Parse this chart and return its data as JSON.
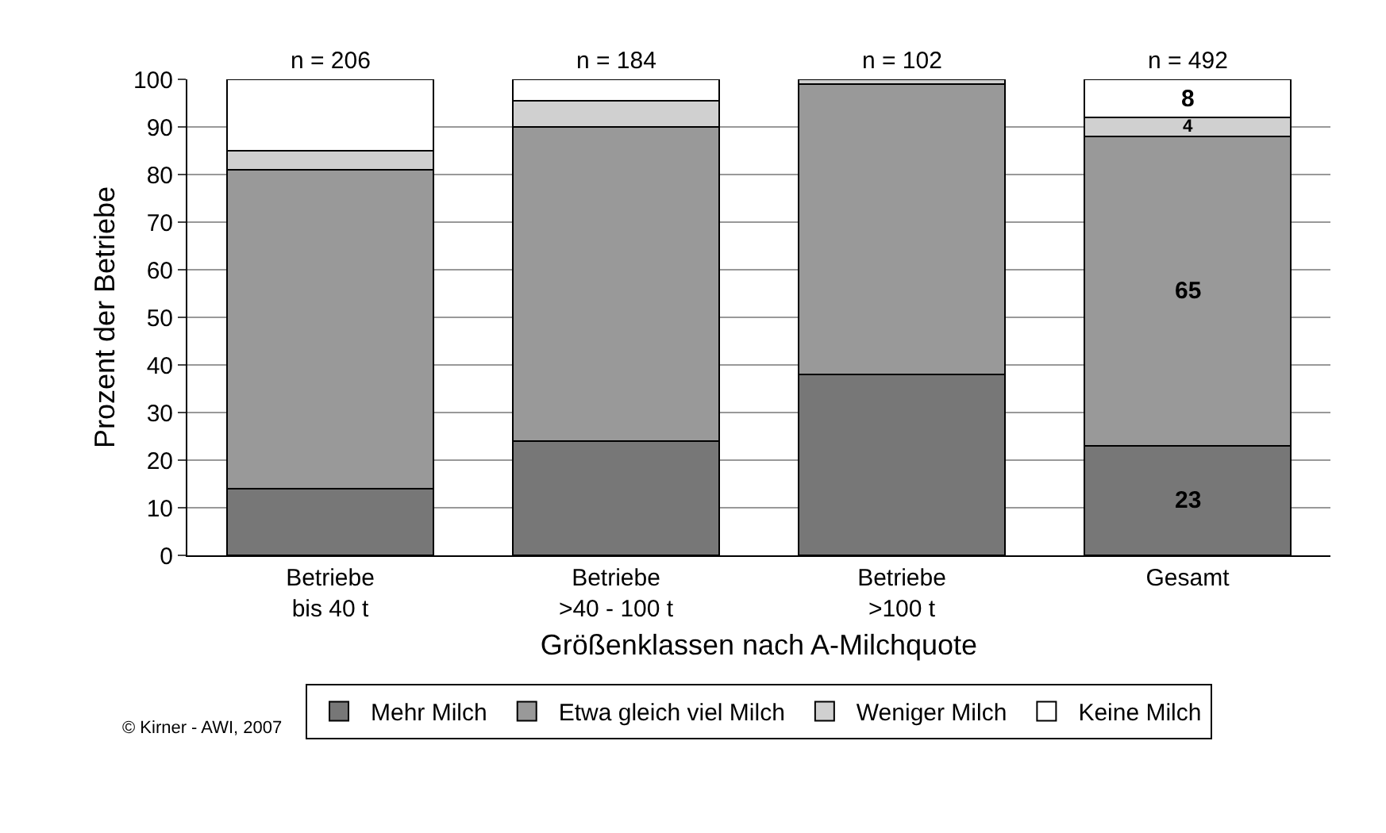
{
  "chart_data": {
    "type": "bar",
    "stacked": true,
    "xlabel": "Größenklassen nach A-Milchquote",
    "ylabel": "Prozent der Betriebe",
    "categories": [
      "Betriebe\nbis 40 t",
      "Betriebe\n>40 - 100 t",
      "Betriebe\n>100 t",
      "Gesamt"
    ],
    "series": [
      {
        "name": "Mehr Milch",
        "color": "#777777",
        "values": [
          14,
          24,
          38,
          23
        ],
        "value_labels": [
          null,
          null,
          null,
          "23"
        ]
      },
      {
        "name": "Etwa gleich viel Milch",
        "color": "#999999",
        "values": [
          67,
          66,
          61,
          65
        ],
        "value_labels": [
          null,
          null,
          null,
          "65"
        ]
      },
      {
        "name": "Weniger Milch",
        "color": "#d0d0d0",
        "values": [
          4,
          5.5,
          1,
          4
        ],
        "value_labels": [
          null,
          null,
          null,
          "4"
        ]
      },
      {
        "name": "Keine Milch",
        "color": "#ffffff",
        "values": [
          15,
          4.5,
          null,
          8
        ],
        "value_labels": [
          null,
          null,
          null,
          "8"
        ]
      }
    ],
    "ylim": [
      0,
      100
    ],
    "yticks": [
      0,
      10,
      20,
      30,
      40,
      50,
      60,
      70,
      80,
      90,
      100
    ],
    "grid": "y",
    "legend": "bottom",
    "annotations": [
      {
        "text": "n = 206",
        "x": "Betriebe\nbis 40 t",
        "y": 100
      },
      {
        "text": "n = 184",
        "x": "Betriebe\n>40 - 100 t",
        "y": 100
      },
      {
        "text": "n = 102",
        "x": "Betriebe\n>100 t",
        "y": 100
      },
      {
        "text": "n = 492",
        "x": "Gesamt",
        "y": 100
      },
      "© Kirner - AWI, 2007"
    ]
  }
}
